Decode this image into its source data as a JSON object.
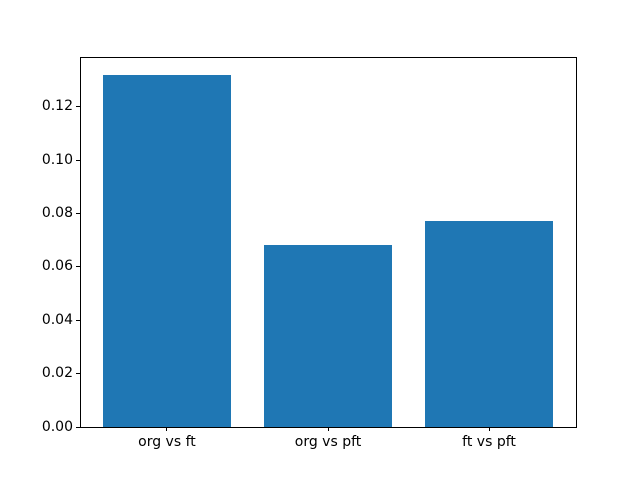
{
  "figure": {
    "background_color": "#ffffff"
  },
  "chart_data": {
    "type": "bar",
    "title": "",
    "xlabel": "",
    "ylabel": "",
    "categories": [
      "org vs ft",
      "org vs pft",
      "ft vs pft"
    ],
    "values": [
      0.132,
      0.068,
      0.077
    ],
    "bar_color": "#1f77b4",
    "bar_width_fraction": 0.8,
    "ylim": [
      0,
      0.1386
    ],
    "yticks": [
      0.0,
      0.02,
      0.04,
      0.06,
      0.08,
      0.1,
      0.12
    ],
    "yticklabels": [
      "0.00",
      "0.02",
      "0.04",
      "0.06",
      "0.08",
      "0.10",
      "0.12"
    ],
    "grid": false,
    "legend": null
  }
}
